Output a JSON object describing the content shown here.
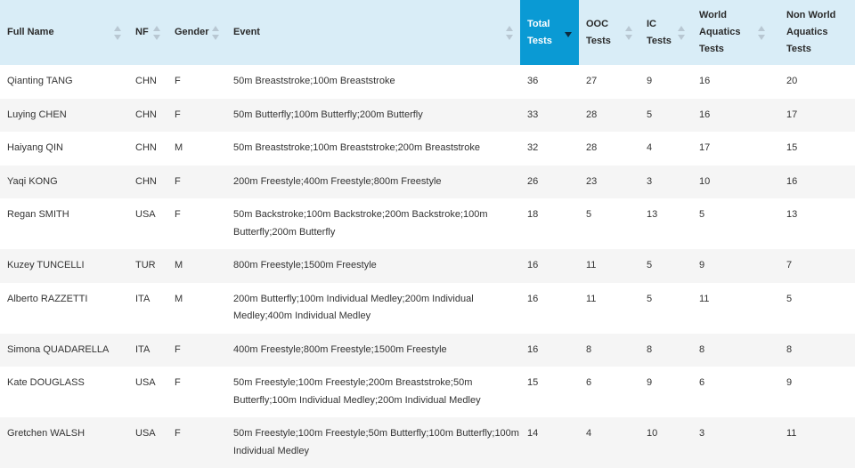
{
  "columns": [
    {
      "label": "Full Name"
    },
    {
      "label": "NF"
    },
    {
      "label": "Gender"
    },
    {
      "label": "Event"
    },
    {
      "label": "Total Tests",
      "sorted": "desc"
    },
    {
      "label": "OOC Tests"
    },
    {
      "label": "IC Tests"
    },
    {
      "label": "World Aquatics Tests"
    },
    {
      "label": "Non World Aquatics Tests"
    }
  ],
  "rows": [
    [
      "Qianting TANG",
      "CHN",
      "F",
      "50m Breaststroke;100m Breaststroke",
      "36",
      "27",
      "9",
      "16",
      "20"
    ],
    [
      "Luying CHEN",
      "CHN",
      "F",
      "50m Butterfly;100m Butterfly;200m Butterfly",
      "33",
      "28",
      "5",
      "16",
      "17"
    ],
    [
      "Haiyang QIN",
      "CHN",
      "M",
      "50m Breaststroke;100m Breaststroke;200m Breaststroke",
      "32",
      "28",
      "4",
      "17",
      "15"
    ],
    [
      "Yaqi KONG",
      "CHN",
      "F",
      "200m Freestyle;400m Freestyle;800m Freestyle",
      "26",
      "23",
      "3",
      "10",
      "16"
    ],
    [
      "Regan SMITH",
      "USA",
      "F",
      "50m Backstroke;100m Backstroke;200m Backstroke;100m Butterfly;200m Butterfly",
      "18",
      "5",
      "13",
      "5",
      "13"
    ],
    [
      "Kuzey TUNCELLI",
      "TUR",
      "M",
      "800m Freestyle;1500m Freestyle",
      "16",
      "11",
      "5",
      "9",
      "7"
    ],
    [
      "Alberto RAZZETTI",
      "ITA",
      "M",
      "200m Butterfly;100m Individual Medley;200m Individual Medley;400m Individual Medley",
      "16",
      "11",
      "5",
      "11",
      "5"
    ],
    [
      "Simona QUADARELLA",
      "ITA",
      "F",
      "400m Freestyle;800m Freestyle;1500m Freestyle",
      "16",
      "8",
      "8",
      "8",
      "8"
    ],
    [
      "Kate DOUGLASS",
      "USA",
      "F",
      "50m Freestyle;100m Freestyle;200m Breaststroke;50m Butterfly;100m Individual Medley;200m Individual Medley",
      "15",
      "6",
      "9",
      "6",
      "9"
    ],
    [
      "Gretchen WALSH",
      "USA",
      "F",
      "50m Freestyle;100m Freestyle;50m Butterfly;100m Butterfly;100m Individual Medley",
      "14",
      "4",
      "10",
      "3",
      "11"
    ]
  ],
  "colors": {
    "header_bg": "#d9edf7",
    "active_header_bg": "#0a9ad4",
    "stripe_bg": "#f5f5f5"
  },
  "icons": {
    "sort": "sort-updown-icon",
    "sort_desc": "sort-desc-icon"
  }
}
